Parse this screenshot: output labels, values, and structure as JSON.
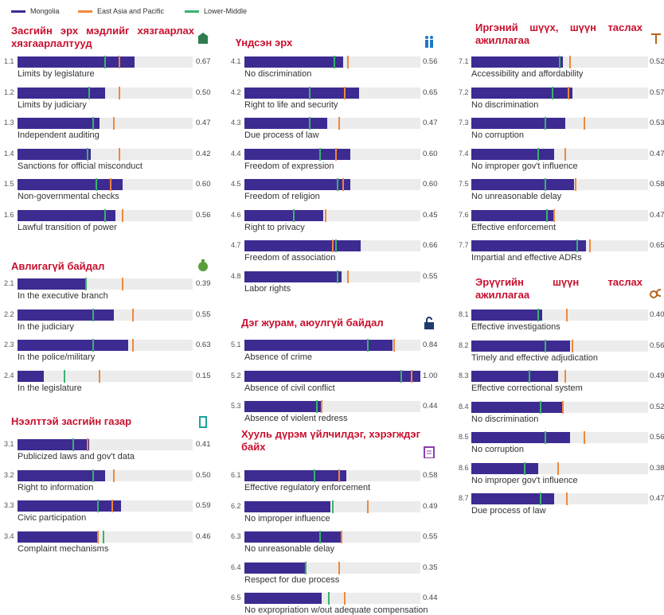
{
  "chart_data": [
    {
      "type": "bar",
      "title": "Засгийн эрх мэдлийг хязгаарлах хязгаарлалтууд",
      "xlim": [
        0,
        1
      ],
      "codes": [
        "1.1",
        "1.2",
        "1.3",
        "1.4",
        "1.5",
        "1.6"
      ],
      "categories": [
        "Limits by legislature",
        "Limits by judiciary",
        "Independent auditing",
        "Sanctions for official misconduct",
        "Non-governmental checks",
        "Lawful transition of power"
      ],
      "series": [
        {
          "name": "Mongolia",
          "color": "#3d2b91",
          "values": [
            0.67,
            0.5,
            0.47,
            0.42,
            0.6,
            0.56
          ],
          "value_labels": [
            "0.67",
            "0.50",
            "0.47",
            "0.42",
            "0.60",
            "0.56"
          ]
        },
        {
          "name": "East Asia and Pacific",
          "color": "#f0883a",
          "values": [
            0.58,
            0.58,
            0.55,
            0.58,
            0.53,
            0.6
          ]
        },
        {
          "name": "Lower-Middle",
          "color": "#3bb26d",
          "values": [
            0.5,
            0.41,
            0.43,
            0.4,
            0.45,
            0.5
          ]
        }
      ]
    },
    {
      "type": "bar",
      "title": "Авлигагүй байдал",
      "xlim": [
        0,
        1
      ],
      "codes": [
        "2.1",
        "2.2",
        "2.3",
        "2.4"
      ],
      "categories": [
        "In the executive branch",
        "In the judiciary",
        "In the police/military",
        "In the legislature"
      ],
      "series": [
        {
          "name": "Mongolia",
          "color": "#3d2b91",
          "values": [
            0.39,
            0.55,
            0.63,
            0.15
          ],
          "value_labels": [
            "0.39",
            "0.55",
            "0.63",
            "0.15"
          ]
        },
        {
          "name": "East Asia and Pacific",
          "color": "#f0883a",
          "values": [
            0.6,
            0.66,
            0.66,
            0.47
          ]
        },
        {
          "name": "Lower-Middle",
          "color": "#3bb26d",
          "values": [
            0.39,
            0.43,
            0.43,
            0.27
          ]
        }
      ]
    },
    {
      "type": "bar",
      "title": "Нээлттэй засгийн газар",
      "xlim": [
        0,
        1
      ],
      "codes": [
        "3.1",
        "3.2",
        "3.3",
        "3.4"
      ],
      "categories": [
        "Publicized laws and gov't data",
        "Right to information",
        "Civic participation",
        "Complaint mechanisms"
      ],
      "series": [
        {
          "name": "Mongolia",
          "color": "#3d2b91",
          "values": [
            0.41,
            0.5,
            0.59,
            0.46
          ],
          "value_labels": [
            "0.41",
            "0.50",
            "0.59",
            "0.46"
          ]
        },
        {
          "name": "East Asia and Pacific",
          "color": "#f0883a",
          "values": [
            0.4,
            0.55,
            0.54,
            0.46
          ]
        },
        {
          "name": "Lower-Middle",
          "color": "#3bb26d",
          "values": [
            0.32,
            0.43,
            0.46,
            0.49
          ]
        }
      ]
    },
    {
      "type": "bar",
      "title": "Үндсэн эрх",
      "xlim": [
        0,
        1
      ],
      "codes": [
        "4.1",
        "4.2",
        "4.3",
        "4.4",
        "4.5",
        "4.6",
        "4.7",
        "4.8"
      ],
      "categories": [
        "No discrimination",
        "Right to life and security",
        "Due process of law",
        "Freedom of expression",
        "Freedom of religion",
        "Right to privacy",
        "Freedom of association",
        "Labor rights"
      ],
      "series": [
        {
          "name": "Mongolia",
          "color": "#3d2b91",
          "values": [
            0.56,
            0.65,
            0.47,
            0.6,
            0.6,
            0.45,
            0.66,
            0.55
          ],
          "value_labels": [
            "0.56",
            "0.65",
            "0.47",
            "0.60",
            "0.60",
            "0.45",
            "0.66",
            "0.55"
          ]
        },
        {
          "name": "East Asia and Pacific",
          "color": "#f0883a",
          "values": [
            0.59,
            0.57,
            0.54,
            0.52,
            0.56,
            0.46,
            0.5,
            0.59
          ]
        },
        {
          "name": "Lower-Middle",
          "color": "#3bb26d",
          "values": [
            0.51,
            0.37,
            0.37,
            0.43,
            0.53,
            0.28,
            0.52,
            0.53
          ]
        }
      ]
    },
    {
      "type": "bar",
      "title": "Дэг журам, аюулгүй байдал",
      "xlim": [
        0,
        1
      ],
      "codes": [
        "5.1",
        "5.2",
        "5.3"
      ],
      "categories": [
        "Absence of crime",
        "Absence of civil conflict",
        "Absence of violent redress"
      ],
      "series": [
        {
          "name": "Mongolia",
          "color": "#3d2b91",
          "values": [
            0.84,
            1.0,
            0.44
          ],
          "value_labels": [
            "0.84",
            "1.00",
            "0.44"
          ]
        },
        {
          "name": "East Asia and Pacific",
          "color": "#f0883a",
          "values": [
            0.85,
            0.95,
            0.44
          ]
        },
        {
          "name": "Lower-Middle",
          "color": "#3bb26d",
          "values": [
            0.7,
            0.89,
            0.41
          ]
        }
      ]
    },
    {
      "type": "bar",
      "title": "Хууль дүрэм үйлчилдэг, хэрэгждэг байх",
      "xlim": [
        0,
        1
      ],
      "codes": [
        "6.1",
        "6.2",
        "6.3",
        "6.4",
        "6.5"
      ],
      "categories": [
        "Effective regulatory enforcement",
        "No improper influence",
        "No unreasonable delay",
        "Respect for due process",
        "No expropriation w/out adequate compensation"
      ],
      "series": [
        {
          "name": "Mongolia",
          "color": "#3d2b91",
          "values": [
            0.58,
            0.49,
            0.55,
            0.35,
            0.44
          ],
          "value_labels": [
            "0.58",
            "0.49",
            "0.55",
            "0.35",
            "0.44"
          ]
        },
        {
          "name": "East Asia and Pacific",
          "color": "#f0883a",
          "values": [
            0.54,
            0.7,
            0.55,
            0.54,
            0.57
          ]
        },
        {
          "name": "Lower-Middle",
          "color": "#3bb26d",
          "values": [
            0.4,
            0.5,
            0.43,
            0.35,
            0.48
          ]
        }
      ]
    },
    {
      "type": "bar",
      "title": "Иргэний шүүх, шүүн таслах ажиллагаа",
      "xlim": [
        0,
        1
      ],
      "codes": [
        "7.1",
        "7.2",
        "7.3",
        "7.4",
        "7.5",
        "7.6",
        "7.7"
      ],
      "categories": [
        "Accessibility and affordability",
        "No discrimination",
        "No corruption",
        "No improper gov't influence",
        "No unreasonable delay",
        "Effective enforcement",
        "Impartial and effective ADRs"
      ],
      "series": [
        {
          "name": "Mongolia",
          "color": "#3d2b91",
          "values": [
            0.52,
            0.57,
            0.53,
            0.47,
            0.58,
            0.47,
            0.65
          ],
          "value_labels": [
            "0.52",
            "0.57",
            "0.53",
            "0.47",
            "0.58",
            "0.47",
            "0.65"
          ]
        },
        {
          "name": "East Asia and Pacific",
          "color": "#f0883a",
          "values": [
            0.56,
            0.55,
            0.64,
            0.53,
            0.59,
            0.47,
            0.67
          ]
        },
        {
          "name": "Lower-Middle",
          "color": "#3bb26d",
          "values": [
            0.5,
            0.46,
            0.42,
            0.38,
            0.42,
            0.43,
            0.6
          ]
        }
      ]
    },
    {
      "type": "bar",
      "title": "Эрүүгийн шүүн таслах ажиллагаа",
      "xlim": [
        0,
        1
      ],
      "codes": [
        "8.1",
        "8.2",
        "8.3",
        "8.4",
        "8.5",
        "8.6",
        "8.7"
      ],
      "categories": [
        "Effective investigations",
        "Timely and effective adjudication",
        "Effective correctional system",
        "No discrimination",
        "No corruption",
        "No improper gov't influence",
        "Due process of law"
      ],
      "series": [
        {
          "name": "Mongolia",
          "color": "#3d2b91",
          "values": [
            0.4,
            0.56,
            0.49,
            0.52,
            0.56,
            0.38,
            0.47
          ],
          "value_labels": [
            "0.40",
            "0.56",
            "0.49",
            "0.52",
            "0.56",
            "0.38",
            "0.47"
          ]
        },
        {
          "name": "East Asia and Pacific",
          "color": "#f0883a",
          "values": [
            0.54,
            0.57,
            0.53,
            0.52,
            0.64,
            0.49,
            0.54
          ]
        },
        {
          "name": "Lower-Middle",
          "color": "#3bb26d",
          "values": [
            0.38,
            0.42,
            0.33,
            0.39,
            0.42,
            0.3,
            0.39
          ]
        }
      ]
    }
  ]
}
